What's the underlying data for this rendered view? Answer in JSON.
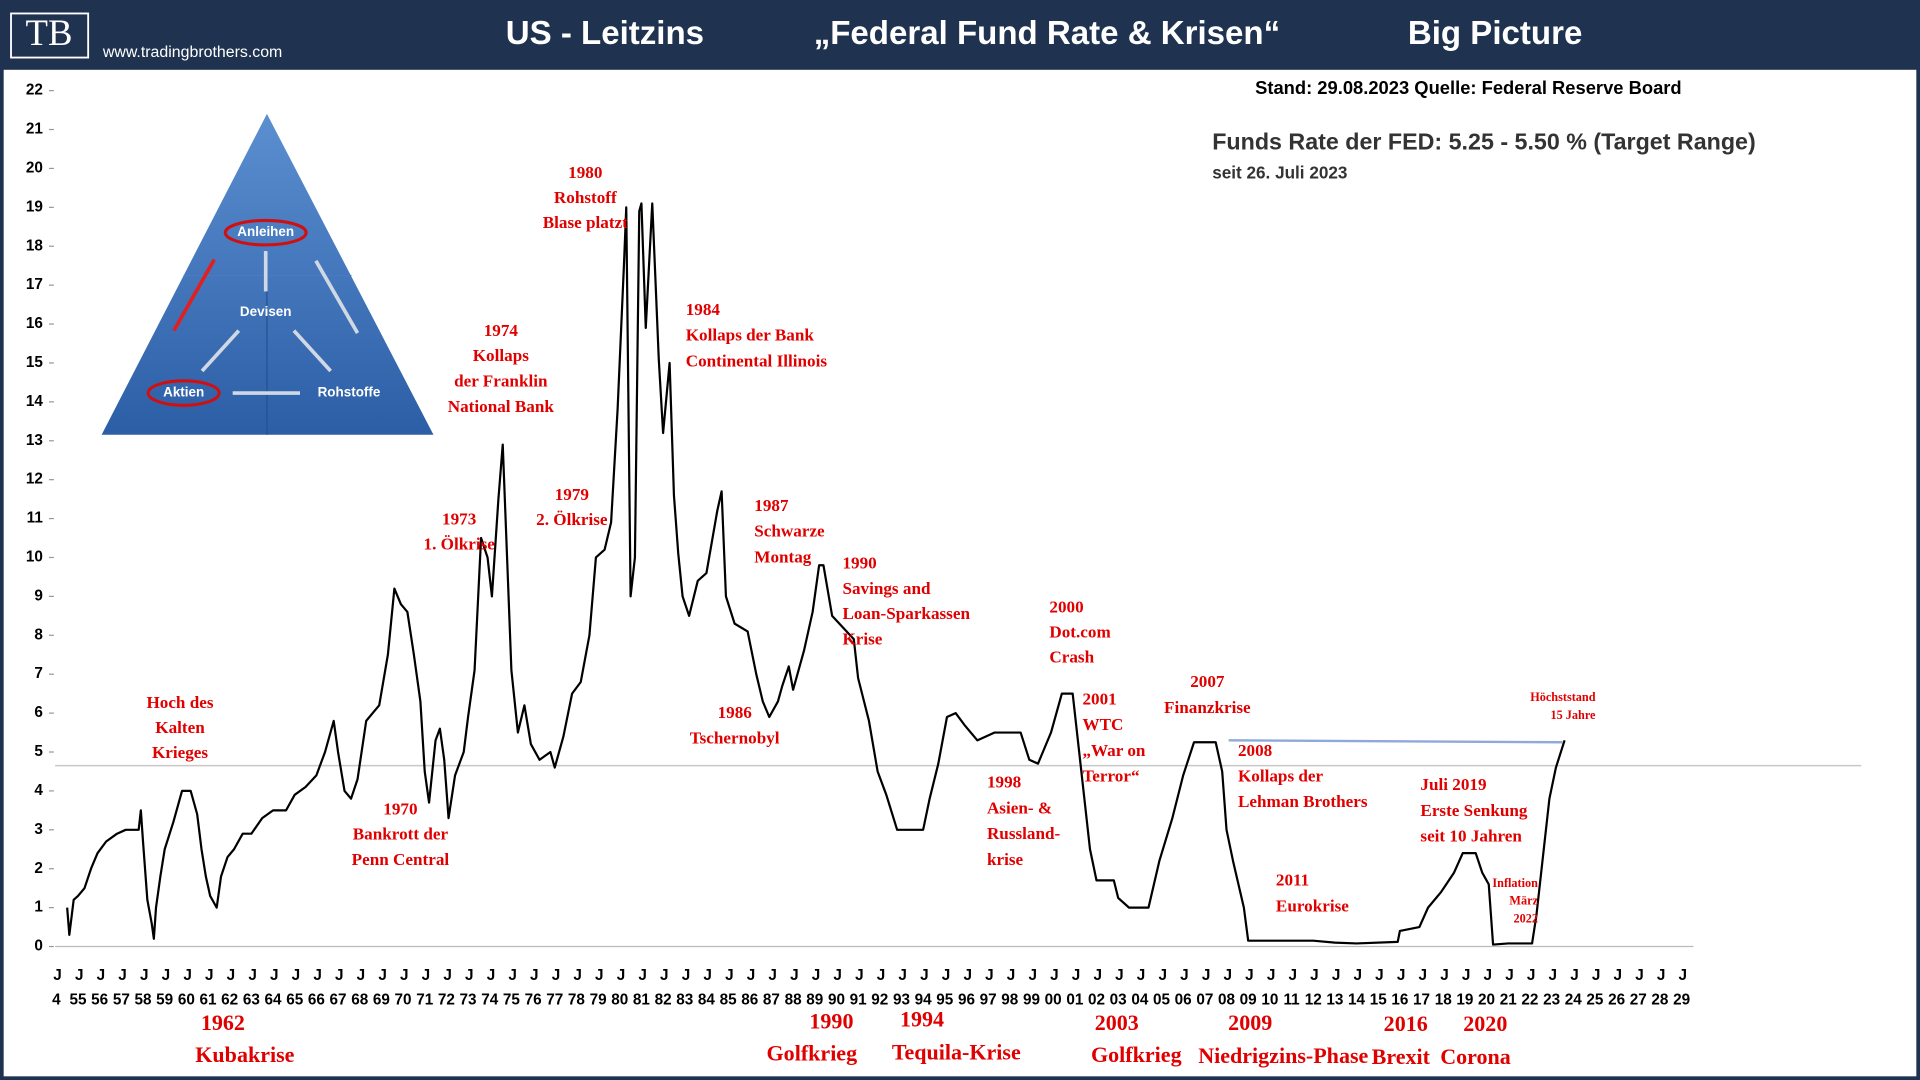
{
  "header": {
    "logo": "TB",
    "website": "www.tradingbrothers.com",
    "title_parts": [
      "US - Leitzins",
      "„Federal Fund Rate & Krisen“",
      "Big Picture"
    ]
  },
  "info": {
    "source": "Stand: 29.08.2023  Quelle: Federal Reserve Board",
    "rate": "Funds Rate der FED: 5.25 -  5.50 % (Target Range)",
    "since": "seit 26. Juli 2023"
  },
  "inset": {
    "labels": [
      "Anleihen",
      "Devisen",
      "Aktien",
      "Rohstoffe"
    ]
  },
  "chart_data": {
    "type": "line",
    "color": "#000000",
    "xlim": [
      1954,
      2030
    ],
    "ylim": [
      0,
      22
    ],
    "yticks": [
      0,
      1,
      2,
      3,
      4,
      5,
      6,
      7,
      8,
      9,
      10,
      11,
      12,
      13,
      14,
      15,
      16,
      17,
      18,
      19,
      20,
      21,
      22
    ],
    "xtick_minor_label": "J",
    "xticks": [
      {
        "value": 1954,
        "label": "4"
      },
      {
        "value": 1955,
        "label": "55"
      },
      {
        "value": 1956,
        "label": "56"
      },
      {
        "value": 1957,
        "label": "57"
      },
      {
        "value": 1958,
        "label": "58"
      },
      {
        "value": 1959,
        "label": "59"
      },
      {
        "value": 1960,
        "label": "60"
      },
      {
        "value": 1961,
        "label": "61"
      },
      {
        "value": 1962,
        "label": "62"
      },
      {
        "value": 1963,
        "label": "63"
      },
      {
        "value": 1964,
        "label": "64"
      },
      {
        "value": 1965,
        "label": "65"
      },
      {
        "value": 1966,
        "label": "66"
      },
      {
        "value": 1967,
        "label": "67"
      },
      {
        "value": 1968,
        "label": "68"
      },
      {
        "value": 1969,
        "label": "69"
      },
      {
        "value": 1970,
        "label": "70"
      },
      {
        "value": 1971,
        "label": "71"
      },
      {
        "value": 1972,
        "label": "72"
      },
      {
        "value": 1973,
        "label": "73"
      },
      {
        "value": 1974,
        "label": "74"
      },
      {
        "value": 1975,
        "label": "75"
      },
      {
        "value": 1976,
        "label": "76"
      },
      {
        "value": 1977,
        "label": "77"
      },
      {
        "value": 1978,
        "label": "78"
      },
      {
        "value": 1979,
        "label": "79"
      },
      {
        "value": 1980,
        "label": "80"
      },
      {
        "value": 1981,
        "label": "81"
      },
      {
        "value": 1982,
        "label": "82"
      },
      {
        "value": 1983,
        "label": "83"
      },
      {
        "value": 1984,
        "label": "84"
      },
      {
        "value": 1985,
        "label": "85"
      },
      {
        "value": 1986,
        "label": "86"
      },
      {
        "value": 1987,
        "label": "87"
      },
      {
        "value": 1988,
        "label": "88"
      },
      {
        "value": 1989,
        "label": "89"
      },
      {
        "value": 1990,
        "label": "90"
      },
      {
        "value": 1991,
        "label": "91"
      },
      {
        "value": 1992,
        "label": "92"
      },
      {
        "value": 1993,
        "label": "93"
      },
      {
        "value": 1994,
        "label": "94"
      },
      {
        "value": 1995,
        "label": "95"
      },
      {
        "value": 1996,
        "label": "96"
      },
      {
        "value": 1997,
        "label": "97"
      },
      {
        "value": 1998,
        "label": "98"
      },
      {
        "value": 1999,
        "label": "99"
      },
      {
        "value": 2000,
        "label": "00"
      },
      {
        "value": 2001,
        "label": "01"
      },
      {
        "value": 2002,
        "label": "02"
      },
      {
        "value": 2003,
        "label": "03"
      },
      {
        "value": 2004,
        "label": "04"
      },
      {
        "value": 2005,
        "label": "05"
      },
      {
        "value": 2006,
        "label": "06"
      },
      {
        "value": 2007,
        "label": "07"
      },
      {
        "value": 2008,
        "label": "08"
      },
      {
        "value": 2009,
        "label": "09"
      },
      {
        "value": 2010,
        "label": "10"
      },
      {
        "value": 2011,
        "label": "11"
      },
      {
        "value": 2012,
        "label": "12"
      },
      {
        "value": 2013,
        "label": "13"
      },
      {
        "value": 2014,
        "label": "14"
      },
      {
        "value": 2015,
        "label": "15"
      },
      {
        "value": 2016,
        "label": "16"
      },
      {
        "value": 2017,
        "label": "17"
      },
      {
        "value": 2018,
        "label": "18"
      },
      {
        "value": 2019,
        "label": "19"
      },
      {
        "value": 2020,
        "label": "20"
      },
      {
        "value": 2021,
        "label": "21"
      },
      {
        "value": 2022,
        "label": "22"
      },
      {
        "value": 2023,
        "label": "23"
      },
      {
        "value": 2024,
        "label": "24"
      },
      {
        "value": 2025,
        "label": "25"
      },
      {
        "value": 2026,
        "label": "26"
      },
      {
        "value": 2027,
        "label": "27"
      },
      {
        "value": 2028,
        "label": "28"
      },
      {
        "value": 2029,
        "label": "29"
      }
    ],
    "x": [
      1954.5,
      1954.6,
      1954.8,
      1955.0,
      1955.3,
      1955.6,
      1955.9,
      1956.3,
      1956.8,
      1957.2,
      1957.8,
      1957.9,
      1958.0,
      1958.2,
      1958.4,
      1958.5,
      1958.6,
      1958.8,
      1959.0,
      1959.4,
      1959.8,
      1960.2,
      1960.5,
      1960.7,
      1960.9,
      1961.1,
      1961.4,
      1961.6,
      1961.9,
      1962.2,
      1962.6,
      1963.0,
      1963.5,
      1964.0,
      1964.6,
      1965.0,
      1965.5,
      1966.0,
      1966.4,
      1966.8,
      1967.0,
      1967.3,
      1967.6,
      1967.9,
      1968.3,
      1968.6,
      1968.9,
      1969.3,
      1969.6,
      1969.9,
      1970.2,
      1970.5,
      1970.8,
      1971.0,
      1971.2,
      1971.5,
      1971.7,
      1971.9,
      1972.1,
      1972.4,
      1972.8,
      1973.0,
      1973.3,
      1973.6,
      1973.9,
      1974.1,
      1974.4,
      1974.6,
      1974.8,
      1975.0,
      1975.3,
      1975.6,
      1975.9,
      1976.3,
      1976.8,
      1977.0,
      1977.4,
      1977.8,
      1978.2,
      1978.6,
      1978.9,
      1979.3,
      1979.6,
      1979.9,
      1980.2,
      1980.3,
      1980.5,
      1980.7,
      1980.9,
      1981.0,
      1981.2,
      1981.5,
      1981.8,
      1982.0,
      1982.3,
      1982.5,
      1982.7,
      1982.9,
      1983.2,
      1983.6,
      1984.0,
      1984.5,
      1984.7,
      1984.9,
      1985.3,
      1985.9,
      1986.3,
      1986.6,
      1986.9,
      1987.3,
      1987.5,
      1987.8,
      1988.0,
      1988.5,
      1988.9,
      1989.2,
      1989.4,
      1989.8,
      1990.3,
      1990.8,
      1991.0,
      1991.5,
      1991.9,
      1992.3,
      1992.8,
      1993.5,
      1994.0,
      1994.3,
      1994.7,
      1995.1,
      1995.5,
      1995.9,
      1996.5,
      1997.3,
      1998.5,
      1998.9,
      1999.3,
      1999.6,
      1999.9,
      2000.4,
      2000.9,
      2001.1,
      2001.4,
      2001.7,
      2002.0,
      2002.8,
      2003.0,
      2003.5,
      2004.4,
      2004.9,
      2005.5,
      2006.0,
      2006.5,
      2007.5,
      2007.8,
      2008.0,
      2008.3,
      2008.8,
      2009.0,
      2010.0,
      2011.0,
      2012.0,
      2013.0,
      2014.0,
      2015.9,
      2016.0,
      2016.9,
      2017.3,
      2017.9,
      2018.5,
      2018.9,
      2019.5,
      2019.8,
      2020.1,
      2020.3,
      2021.0,
      2022.1,
      2022.3,
      2022.6,
      2022.9,
      2023.2,
      2023.6
    ],
    "values": [
      1.0,
      0.3,
      1.2,
      1.3,
      1.5,
      2.0,
      2.4,
      2.7,
      2.9,
      3.0,
      3.0,
      3.5,
      2.7,
      1.2,
      0.6,
      0.2,
      1.0,
      1.8,
      2.5,
      3.2,
      4.0,
      4.0,
      3.4,
      2.5,
      1.8,
      1.3,
      1.0,
      1.8,
      2.3,
      2.5,
      2.9,
      2.9,
      3.3,
      3.5,
      3.5,
      3.9,
      4.1,
      4.4,
      5.0,
      5.8,
      5.0,
      4.0,
      3.8,
      4.3,
      5.8,
      6.0,
      6.2,
      7.5,
      9.2,
      8.8,
      8.6,
      7.5,
      6.3,
      4.5,
      3.7,
      5.3,
      5.6,
      4.8,
      3.3,
      4.4,
      5.0,
      5.9,
      7.1,
      10.5,
      10.0,
      9.0,
      11.5,
      12.9,
      10.0,
      7.1,
      5.5,
      6.2,
      5.2,
      4.8,
      5.0,
      4.6,
      5.4,
      6.5,
      6.8,
      8.0,
      10.0,
      10.2,
      10.9,
      13.8,
      17.6,
      19.0,
      9.0,
      10.0,
      18.9,
      19.1,
      15.9,
      19.1,
      15.1,
      13.2,
      15.0,
      11.6,
      10.1,
      9.0,
      8.5,
      9.4,
      9.6,
      11.2,
      11.7,
      9.0,
      8.3,
      8.1,
      7.0,
      6.3,
      5.9,
      6.3,
      6.7,
      7.2,
      6.6,
      7.6,
      8.6,
      9.8,
      9.8,
      8.5,
      8.2,
      7.9,
      6.9,
      5.8,
      4.5,
      3.9,
      3.0,
      3.0,
      3.0,
      3.8,
      4.7,
      5.9,
      6.0,
      5.7,
      5.3,
      5.5,
      5.5,
      4.8,
      4.7,
      5.1,
      5.5,
      6.5,
      6.5,
      5.5,
      4.0,
      2.5,
      1.7,
      1.7,
      1.25,
      1.0,
      1.0,
      2.2,
      3.3,
      4.4,
      5.25,
      5.25,
      4.5,
      3.0,
      2.2,
      1.0,
      0.15,
      0.15,
      0.15,
      0.15,
      0.1,
      0.08,
      0.12,
      0.4,
      0.5,
      1.0,
      1.4,
      1.9,
      2.4,
      2.4,
      1.9,
      1.6,
      0.05,
      0.08,
      0.08,
      0.8,
      2.3,
      3.8,
      4.6,
      5.3
    ],
    "hlines": [
      {
        "value": 4.65,
        "color": "#c8c8c8"
      }
    ],
    "trend_line": {
      "x": [
        2008.1,
        2023.5
      ],
      "y": [
        5.3,
        5.25
      ],
      "color": "#8fa9d8"
    },
    "annotations": [
      {
        "lines": [
          "Hoch des",
          "Kalten",
          "Krieges"
        ]
      },
      {
        "lines": [
          "1970",
          "Bankrott der",
          "Penn Central"
        ]
      },
      {
        "lines": [
          "1973",
          "1. Ölkrise"
        ]
      },
      {
        "lines": [
          "1974",
          "Kollaps",
          "der Franklin",
          "National Bank"
        ]
      },
      {
        "lines": [
          "1979",
          "2. Ölkrise"
        ]
      },
      {
        "lines": [
          "1980",
          "Rohstoff",
          "Blase platzt"
        ]
      },
      {
        "lines": [
          "1984",
          "Kollaps der Bank",
          "Continental Illinois"
        ]
      },
      {
        "lines": [
          "1986",
          "Tschernobyl"
        ]
      },
      {
        "lines": [
          "1987",
          "Schwarze",
          "Montag"
        ]
      },
      {
        "lines": [
          "1990",
          "Savings and",
          "Loan-Sparkassen",
          "Krise"
        ]
      },
      {
        "lines": [
          "1998",
          "Asien- &",
          "Russland-",
          "krise"
        ]
      },
      {
        "lines": [
          "2000",
          "Dot.com",
          "Crash"
        ]
      },
      {
        "lines": [
          "2001",
          "WTC",
          "„War on",
          "Terror“"
        ]
      },
      {
        "lines": [
          "2007",
          "Finanzkrise"
        ]
      },
      {
        "lines": [
          "2008",
          "Kollaps der",
          "Lehman Brothers"
        ]
      },
      {
        "lines": [
          "2011",
          "Eurokrise"
        ]
      },
      {
        "lines": [
          "Juli 2019",
          "Erste Senkung",
          "seit 10 Jahren"
        ]
      },
      {
        "lines": [
          "Inflation",
          "März",
          "2022"
        ]
      },
      {
        "lines": [
          "Höchststand",
          "15 Jahre"
        ]
      }
    ],
    "events": [
      {
        "year": "1962",
        "name": "Kubakrise"
      },
      {
        "year": "1990",
        "name": "Golfkrieg"
      },
      {
        "year": "1994",
        "name": "Tequila-Krise"
      },
      {
        "year": "2003",
        "name": "Golfkrieg"
      },
      {
        "year": "2009",
        "name": "Niedrigzins-Phase"
      },
      {
        "year": "2016",
        "name": "Brexit"
      },
      {
        "year": "2020",
        "name": "Corona"
      }
    ]
  }
}
